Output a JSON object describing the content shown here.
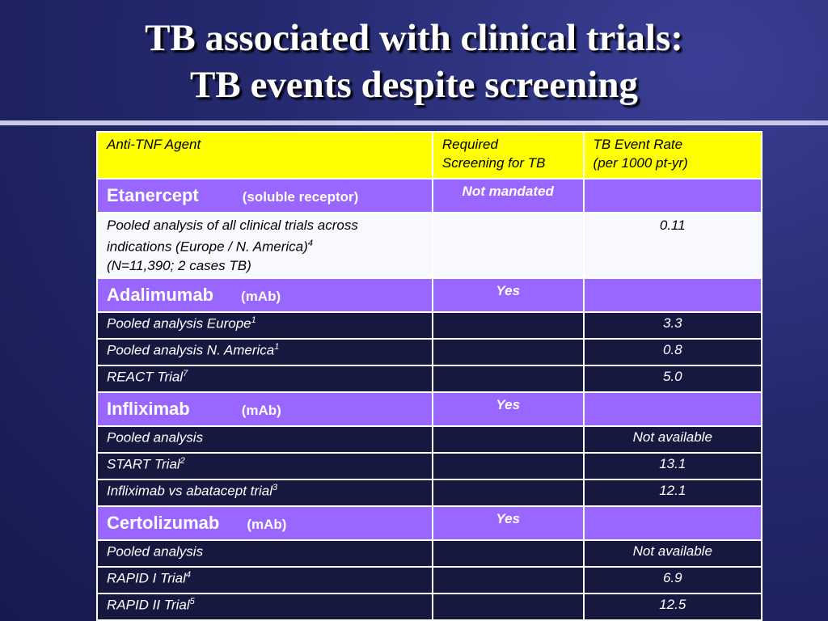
{
  "title": {
    "line1": "TB associated with clinical trials:",
    "line2": "TB events despite screening"
  },
  "table": {
    "header": {
      "agent": "Anti-TNF Agent",
      "screening_line1": "Required",
      "screening_line2": "Screening for TB",
      "rate_line1": "TB Event Rate",
      "rate_line2": "(per 1000 pt-yr)"
    },
    "drugs": [
      {
        "name": "Etanercept",
        "type": "(soluble receptor)",
        "screening": "Not mandated",
        "rows": [
          {
            "line1": "Pooled analysis of all clinical trials across",
            "line2": "indications (Europe / N. America)",
            "ref": "4",
            "line3": "(N=11,390;  2 cases TB)",
            "rate": "0.11"
          }
        ]
      },
      {
        "name": "Adalimumab",
        "type": "(mAb)",
        "screening": "Yes",
        "rows": [
          {
            "label": "Pooled analysis Europe",
            "ref": "1",
            "rate": "3.3"
          },
          {
            "label": "Pooled analysis N. America",
            "ref": "1",
            "rate": "0.8"
          },
          {
            "label": "REACT Trial",
            "ref": "7",
            "rate": "5.0"
          }
        ]
      },
      {
        "name": "Infliximab",
        "type": "(mAb)",
        "screening": "Yes",
        "rows": [
          {
            "label": "Pooled analysis",
            "ref": "",
            "rate": "Not available"
          },
          {
            "label": "START Trial",
            "ref": "2",
            "rate": "13.1"
          },
          {
            "label": "Infliximab vs abatacept trial",
            "ref": "3",
            "rate": "12.1"
          }
        ]
      },
      {
        "name": "Certolizumab",
        "type": "(mAb)",
        "screening": "Yes",
        "rows": [
          {
            "label": "Pooled analysis",
            "ref": "",
            "rate": "Not available"
          },
          {
            "label": "RAPID I Trial",
            "ref": "4",
            "rate": "6.9"
          },
          {
            "label": "RAPID II Trial",
            "ref": "5",
            "rate": "12.5"
          }
        ]
      }
    ]
  },
  "colors": {
    "header_bg": "#ffff00",
    "drug_row_bg": "#9966ff",
    "highlight_row_bg": "#f8f8ff",
    "data_row_bg": "#161840",
    "slide_bg": "#24296e"
  }
}
